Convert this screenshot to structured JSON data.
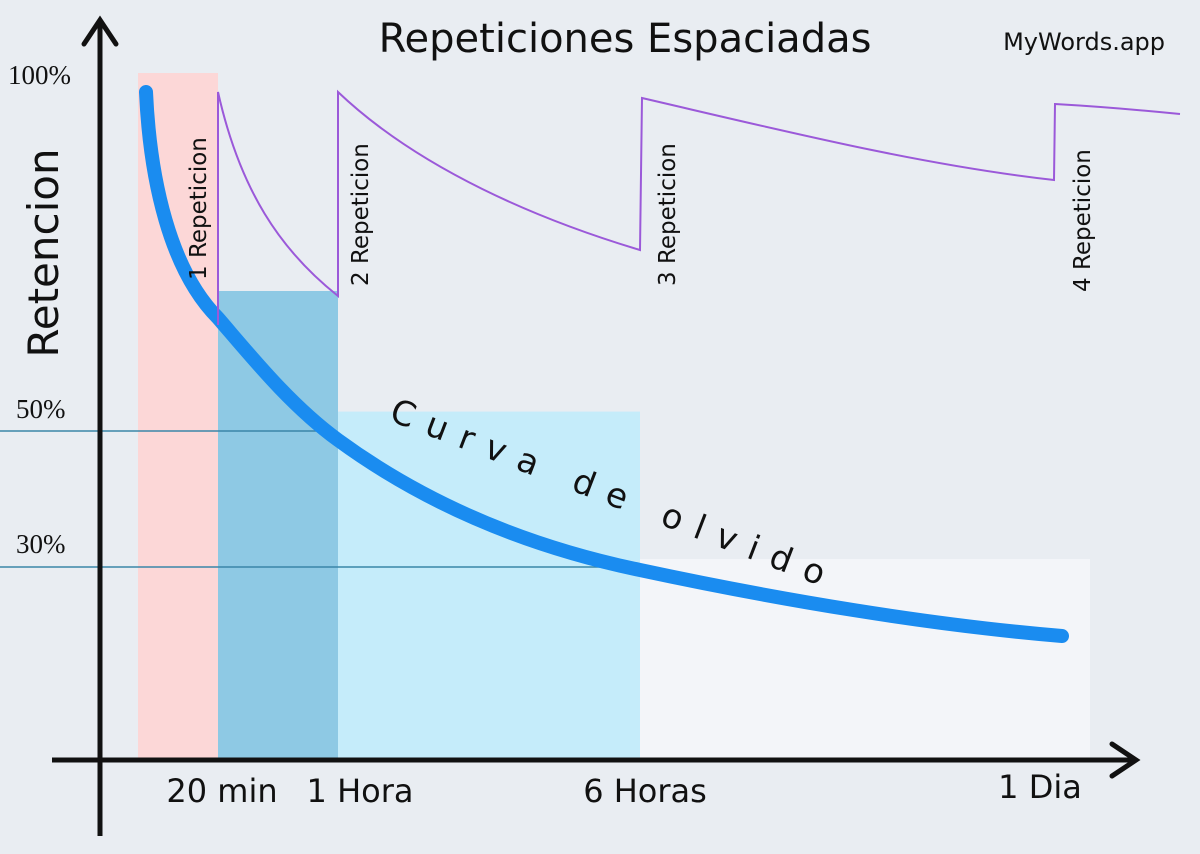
{
  "chart_data": {
    "type": "line",
    "title": "Repeticiones Espaciadas",
    "brand": "MyWords.app",
    "ylabel": "Retencion",
    "ylim": [
      0,
      100
    ],
    "y_ticks": [
      "100%",
      "50%",
      "30%"
    ],
    "x_categories": [
      "20 min",
      "1 Hora",
      "6 Horas",
      "1 Dia"
    ],
    "curve_label": "Curva de olvido",
    "forgetting_curve": {
      "name": "Curva de olvido",
      "color": "#1a8cf0",
      "points": [
        {
          "x": "0",
          "y": 97
        },
        {
          "x": "20 min",
          "y": 63
        },
        {
          "x": "1 Hora",
          "y": 48
        },
        {
          "x": "6 Horas",
          "y": 28
        },
        {
          "x": "1 Dia",
          "y": 18
        }
      ]
    },
    "repetition_curve": {
      "color": "#9b59d9",
      "points": [
        {
          "x": "20 min",
          "y": 97
        },
        {
          "x": "1 Hora",
          "y": 67
        },
        {
          "x": "1 Hora",
          "y": 97
        },
        {
          "x": "6 Horas",
          "y": 75
        },
        {
          "x": "6 Horas",
          "y": 96
        },
        {
          "x": "1 Dia",
          "y": 85
        },
        {
          "x": "1 Dia",
          "y": 95
        },
        {
          "x": "end",
          "y": 94
        }
      ]
    },
    "repetitions": [
      "1 Repeticion",
      "2 Repeticion",
      "3 Repeticion",
      "4 Repeticion"
    ],
    "bands": [
      {
        "label": "20 min",
        "retention": 100,
        "color": "#fcd7d7"
      },
      {
        "label": "1 Hora",
        "retention": 70,
        "color": "#8ec9e4"
      },
      {
        "label": "6 Horas",
        "retention": 52,
        "color": "#c5ecfa"
      },
      {
        "label": "1 Dia",
        "retention": 30,
        "color": "#f3f5f9"
      }
    ],
    "reference_lines": [
      50,
      30
    ],
    "grid": false
  }
}
